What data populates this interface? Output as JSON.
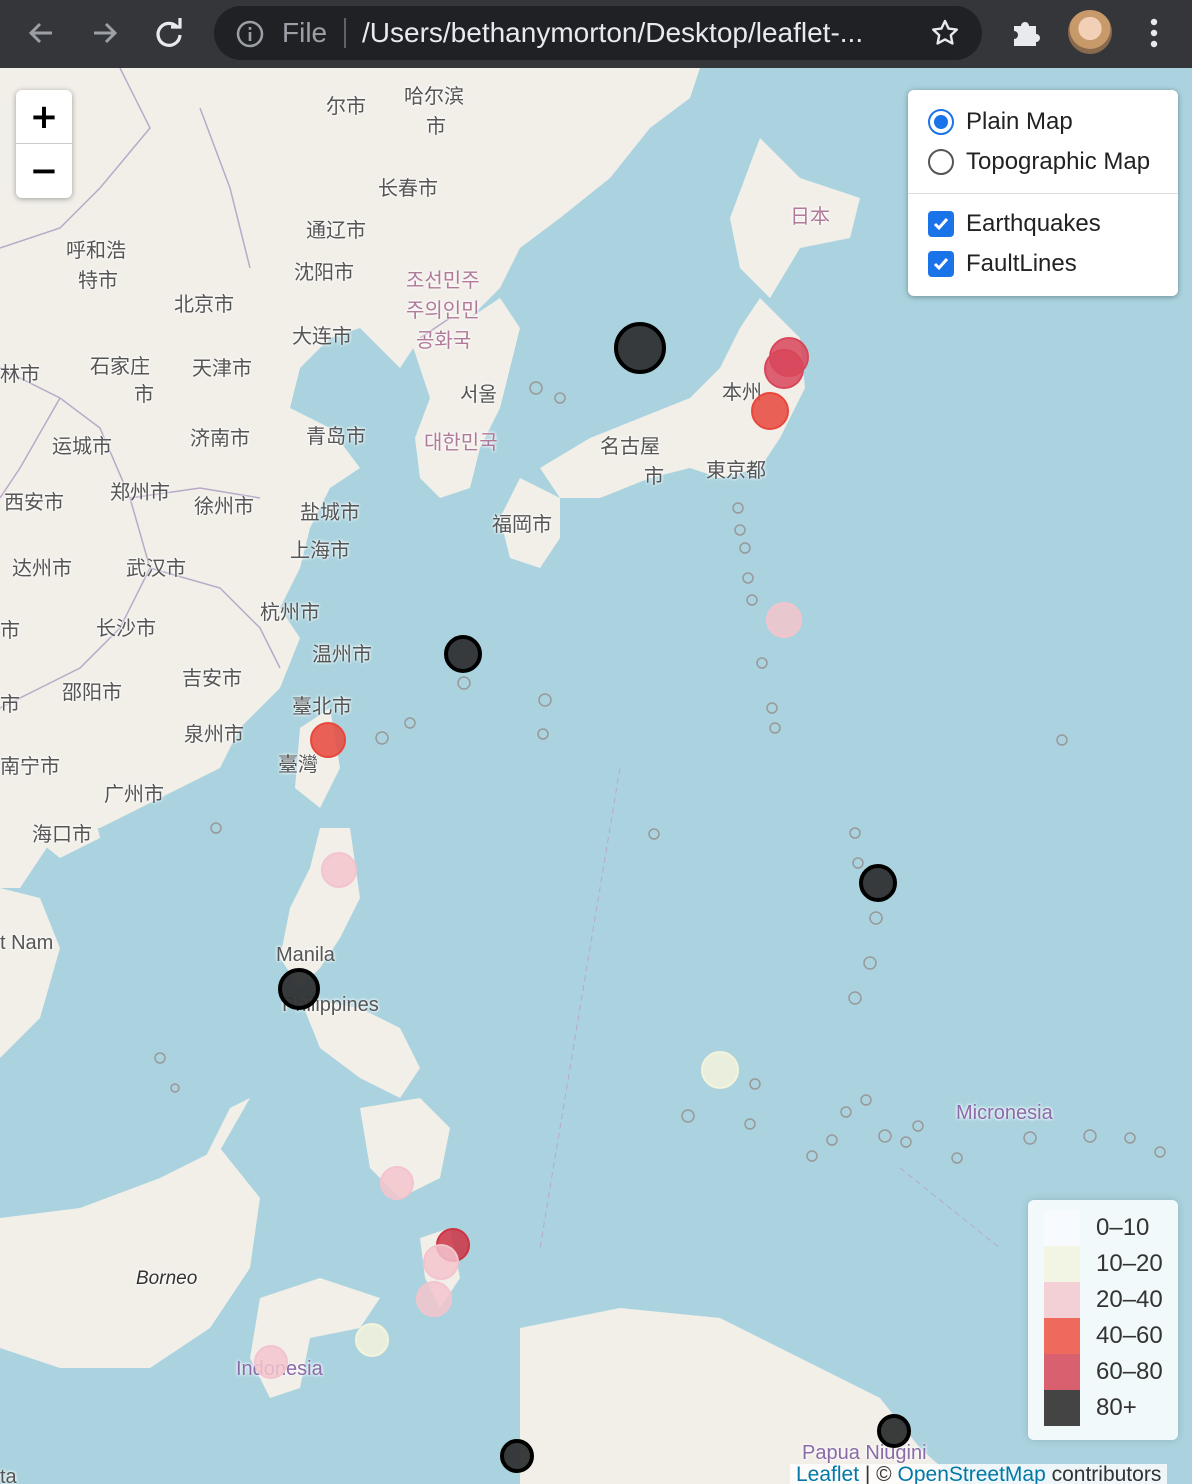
{
  "browser": {
    "file_label": "File",
    "url": "/Users/bethanymorton/Desktop/leaflet-..."
  },
  "zoom": {
    "in": "+",
    "out": "−"
  },
  "layer_control": {
    "base_layers": [
      {
        "label": "Plain Map",
        "selected": true
      },
      {
        "label": "Topographic Map",
        "selected": false
      }
    ],
    "overlays": [
      {
        "label": "Earthquakes",
        "checked": true
      },
      {
        "label": "FaultLines",
        "checked": true
      }
    ]
  },
  "legend": {
    "items": [
      {
        "label": "0–10",
        "color": "#f7fbff"
      },
      {
        "label": "10–20",
        "color": "#f2f5e4"
      },
      {
        "label": "20–40",
        "color": "#f3cfd6"
      },
      {
        "label": "40–60",
        "color": "#ee6a5c"
      },
      {
        "label": "60–80",
        "color": "#d9606e"
      },
      {
        "label": "80+",
        "color": "#444444"
      }
    ]
  },
  "attribution": {
    "leaflet": "Leaflet",
    "separator": " | © ",
    "osm": "OpenStreetMap",
    "suffix": " contributors"
  },
  "places": [
    {
      "id": "p1",
      "text": "哈尔滨"
    },
    {
      "id": "p2",
      "text": "市"
    },
    {
      "id": "p3",
      "text": "尔市"
    },
    {
      "id": "p4",
      "text": "长春市"
    },
    {
      "id": "p5",
      "text": "呼和浩"
    },
    {
      "id": "p6",
      "text": "特市"
    },
    {
      "id": "p7",
      "text": "通辽市"
    },
    {
      "id": "p8",
      "text": "沈阳市"
    },
    {
      "id": "p9",
      "text": "北京市"
    },
    {
      "id": "p10",
      "text": "大连市"
    },
    {
      "id": "p11",
      "text": "林市"
    },
    {
      "id": "p12",
      "text": "石家庄"
    },
    {
      "id": "p13",
      "text": "市"
    },
    {
      "id": "p14",
      "text": "天津市"
    },
    {
      "id": "p15",
      "text": "运城市"
    },
    {
      "id": "p16",
      "text": "济南市"
    },
    {
      "id": "p17",
      "text": "青岛市"
    },
    {
      "id": "p18",
      "text": "西安市"
    },
    {
      "id": "p19",
      "text": "郑州市"
    },
    {
      "id": "p20",
      "text": "徐州市"
    },
    {
      "id": "p21",
      "text": "盐城市"
    },
    {
      "id": "p22",
      "text": "上海市"
    },
    {
      "id": "p23",
      "text": "达州市"
    },
    {
      "id": "p24",
      "text": "武汉市"
    },
    {
      "id": "p25",
      "text": "杭州市"
    },
    {
      "id": "p26",
      "text": "长沙市"
    },
    {
      "id": "p27",
      "text": "温州市"
    },
    {
      "id": "p28",
      "text": "吉安市"
    },
    {
      "id": "p29",
      "text": "邵阳市"
    },
    {
      "id": "p30",
      "text": "臺北市"
    },
    {
      "id": "p31",
      "text": "泉州市"
    },
    {
      "id": "p32",
      "text": "南宁市"
    },
    {
      "id": "p33",
      "text": "臺灣"
    },
    {
      "id": "p34",
      "text": "广州市"
    },
    {
      "id": "p35",
      "text": "海口市"
    },
    {
      "id": "p36",
      "text": "조선민주"
    },
    {
      "id": "p37",
      "text": "주의인민"
    },
    {
      "id": "p38",
      "text": "공화국"
    },
    {
      "id": "p39",
      "text": "서울"
    },
    {
      "id": "p40",
      "text": "대한민국"
    },
    {
      "id": "p41",
      "text": "日本"
    },
    {
      "id": "p42",
      "text": "本州"
    },
    {
      "id": "p43",
      "text": "名古屋"
    },
    {
      "id": "p44",
      "text": "市"
    },
    {
      "id": "p45",
      "text": "東京都"
    },
    {
      "id": "p46",
      "text": "福岡市"
    },
    {
      "id": "p47",
      "text": "t Nam"
    },
    {
      "id": "p48",
      "text": "Manila"
    },
    {
      "id": "p49",
      "text": "Philippines"
    },
    {
      "id": "p50",
      "text": "Micronesia"
    },
    {
      "id": "p51",
      "text": "Borneo"
    },
    {
      "id": "p52",
      "text": "Indonesia"
    },
    {
      "id": "p53",
      "text": "Papua Niugini"
    },
    {
      "id": "p54",
      "text": "ta"
    },
    {
      "id": "p55",
      "text": "市"
    },
    {
      "id": "p56",
      "text": "市"
    }
  ],
  "earthquakes": [
    {
      "depth_class": "80+",
      "color": "#2f3133",
      "mag_class": "large"
    },
    {
      "depth_class": "60-80",
      "color": "#d9465a",
      "mag_class": "medium"
    },
    {
      "depth_class": "60-80",
      "color": "#d9465a",
      "mag_class": "medium"
    },
    {
      "depth_class": "40-60",
      "color": "#e8483c",
      "mag_class": "medium"
    },
    {
      "depth_class": "20-40",
      "color": "#f3c4cd",
      "mag_class": "medium"
    },
    {
      "depth_class": "80+",
      "color": "#2f3133",
      "mag_class": "small"
    },
    {
      "depth_class": "40-60",
      "color": "#e8483c",
      "mag_class": "small"
    },
    {
      "depth_class": "20-40",
      "color": "#f3c4cd",
      "mag_class": "medium"
    },
    {
      "depth_class": "80+",
      "color": "#2f3133",
      "mag_class": "small"
    },
    {
      "depth_class": "80+",
      "color": "#2f3133",
      "mag_class": "medium"
    },
    {
      "depth_class": "10-20",
      "color": "#f4f3dc",
      "mag_class": "medium"
    },
    {
      "depth_class": "20-40",
      "color": "#f3c4cd",
      "mag_class": "medium"
    },
    {
      "depth_class": "60-80",
      "color": "#cc3344",
      "mag_class": "small"
    },
    {
      "depth_class": "20-40",
      "color": "#f3c4cd",
      "mag_class": "medium"
    },
    {
      "depth_class": "20-40",
      "color": "#f3c4cd",
      "mag_class": "medium"
    },
    {
      "depth_class": "10-20",
      "color": "#f4f3dc",
      "mag_class": "small"
    },
    {
      "depth_class": "20-40",
      "color": "#f3c4cd",
      "mag_class": "small"
    },
    {
      "depth_class": "80+",
      "color": "#2f3133",
      "mag_class": "small"
    },
    {
      "depth_class": "80+",
      "color": "#2f3133",
      "mag_class": "small"
    }
  ]
}
